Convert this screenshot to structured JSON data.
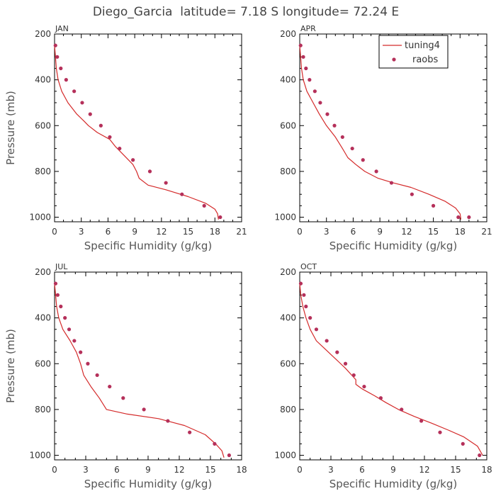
{
  "title": "Diego_Garcia  latitude= 7.18 S longitude= 72.24 E",
  "colors": {
    "model": "#d42a2a",
    "obs": "#b5305a",
    "axis": "#000000"
  },
  "legend": {
    "model_label": "tuning4",
    "obs_label": "raobs"
  },
  "chart_data": [
    {
      "type": "line",
      "panel": "JAN",
      "xlabel": "Specific Humidity (g/kg)",
      "ylabel": "Pressure (mb)",
      "xlim": [
        0,
        21
      ],
      "ylim": [
        200,
        1020
      ],
      "y_inverted": true,
      "xticks": [
        0,
        3,
        6,
        9,
        12,
        15,
        18,
        21
      ],
      "yticks": [
        200,
        400,
        600,
        800,
        1000
      ],
      "series": [
        {
          "name": "tuning4",
          "style": "line",
          "x": [
            0.0,
            0.1,
            0.2,
            0.4,
            0.8,
            1.5,
            2.5,
            3.3,
            3.8,
            4.8,
            6.2,
            6.8,
            7.8,
            8.8,
            9.2,
            9.5,
            10.5,
            12.5,
            15.0,
            17.0,
            18.0,
            18.3,
            18.4
          ],
          "y": [
            250,
            300,
            350,
            400,
            450,
            500,
            550,
            580,
            600,
            630,
            660,
            690,
            730,
            770,
            800,
            830,
            860,
            880,
            910,
            940,
            965,
            985,
            1010
          ]
        },
        {
          "name": "raobs",
          "style": "markers",
          "x": [
            0.1,
            0.3,
            0.7,
            1.3,
            2.2,
            3.1,
            4.0,
            5.2,
            6.2,
            7.3,
            8.8,
            10.7,
            12.5,
            14.3,
            16.8,
            18.6
          ],
          "y": [
            250,
            300,
            350,
            400,
            450,
            500,
            550,
            600,
            650,
            700,
            750,
            800,
            850,
            900,
            950,
            1000
          ]
        }
      ]
    },
    {
      "type": "line",
      "panel": "APR",
      "xlabel": "Specific Humidity (g/kg)",
      "ylabel": "Pressure (mb)",
      "xlim": [
        0,
        21
      ],
      "ylim": [
        200,
        1020
      ],
      "y_inverted": true,
      "xticks": [
        0,
        3,
        6,
        9,
        12,
        15,
        18,
        21
      ],
      "yticks": [
        200,
        400,
        600,
        800,
        1000
      ],
      "series": [
        {
          "name": "tuning4",
          "style": "line",
          "x": [
            0.0,
            0.1,
            0.2,
            0.4,
            0.8,
            1.5,
            2.2,
            3.0,
            4.0,
            4.8,
            5.1,
            5.4,
            6.3,
            7.3,
            8.8,
            10.5,
            12.5,
            14.5,
            16.3,
            17.5,
            18.0,
            18.1
          ],
          "y": [
            250,
            300,
            350,
            400,
            450,
            500,
            550,
            600,
            650,
            700,
            720,
            740,
            770,
            800,
            830,
            850,
            870,
            900,
            930,
            960,
            985,
            1010
          ]
        },
        {
          "name": "raobs",
          "style": "markers",
          "x": [
            0.1,
            0.4,
            0.7,
            1.1,
            1.7,
            2.3,
            3.1,
            3.9,
            4.8,
            5.9,
            7.1,
            8.6,
            10.3,
            12.6,
            15.0,
            17.8,
            19.0
          ],
          "y": [
            250,
            300,
            350,
            400,
            450,
            500,
            550,
            600,
            650,
            700,
            750,
            800,
            850,
            900,
            950,
            1000,
            1000
          ]
        }
      ]
    },
    {
      "type": "line",
      "panel": "JUL",
      "xlabel": "Specific Humidity (g/kg)",
      "ylabel": "Pressure (mb)",
      "xlim": [
        0,
        18
      ],
      "ylim": [
        200,
        1020
      ],
      "y_inverted": true,
      "xticks": [
        0,
        3,
        6,
        9,
        12,
        15,
        18
      ],
      "yticks": [
        200,
        400,
        600,
        800,
        1000
      ],
      "series": [
        {
          "name": "tuning4",
          "style": "line",
          "x": [
            0.0,
            0.1,
            0.2,
            0.4,
            0.8,
            1.5,
            2.1,
            2.5,
            2.8,
            3.5,
            4.3,
            5.0,
            7.0,
            10.0,
            12.5,
            14.5,
            15.5,
            16.1,
            16.3
          ],
          "y": [
            250,
            300,
            350,
            400,
            450,
            500,
            550,
            600,
            650,
            700,
            750,
            800,
            820,
            840,
            870,
            910,
            950,
            980,
            1010
          ]
        },
        {
          "name": "raobs",
          "style": "markers",
          "x": [
            0.1,
            0.3,
            0.6,
            1.0,
            1.4,
            1.9,
            2.5,
            3.2,
            4.1,
            5.3,
            6.6,
            8.6,
            10.9,
            13.0,
            15.4,
            16.8
          ],
          "y": [
            250,
            300,
            350,
            400,
            450,
            500,
            550,
            600,
            650,
            700,
            750,
            800,
            850,
            900,
            950,
            1000
          ]
        }
      ]
    },
    {
      "type": "line",
      "panel": "OCT",
      "xlabel": "Specific Humidity (g/kg)",
      "ylabel": "Pressure (mb)",
      "xlim": [
        0,
        18
      ],
      "ylim": [
        200,
        1020
      ],
      "y_inverted": true,
      "xticks": [
        0,
        3,
        6,
        9,
        12,
        15,
        18
      ],
      "yticks": [
        200,
        400,
        600,
        800,
        1000
      ],
      "series": [
        {
          "name": "tuning4",
          "style": "line",
          "x": [
            0.0,
            0.1,
            0.3,
            0.6,
            1.0,
            1.6,
            2.3,
            3.0,
            3.7,
            4.4,
            5.0,
            5.4,
            5.4,
            6.0,
            7.2,
            8.3,
            9.5,
            11.0,
            12.7,
            14.3,
            15.8,
            17.1,
            17.6
          ],
          "y": [
            250,
            300,
            350,
            400,
            450,
            500,
            530,
            560,
            590,
            620,
            650,
            670,
            690,
            710,
            740,
            770,
            800,
            830,
            860,
            890,
            920,
            960,
            1000
          ]
        },
        {
          "name": "raobs",
          "style": "markers",
          "x": [
            0.1,
            0.4,
            0.6,
            1.0,
            1.6,
            2.6,
            3.6,
            4.4,
            5.2,
            6.2,
            7.8,
            9.8,
            11.7,
            13.5,
            15.7,
            17.3
          ],
          "y": [
            250,
            300,
            350,
            400,
            450,
            500,
            550,
            600,
            650,
            700,
            750,
            800,
            850,
            900,
            950,
            1000
          ]
        }
      ]
    }
  ]
}
